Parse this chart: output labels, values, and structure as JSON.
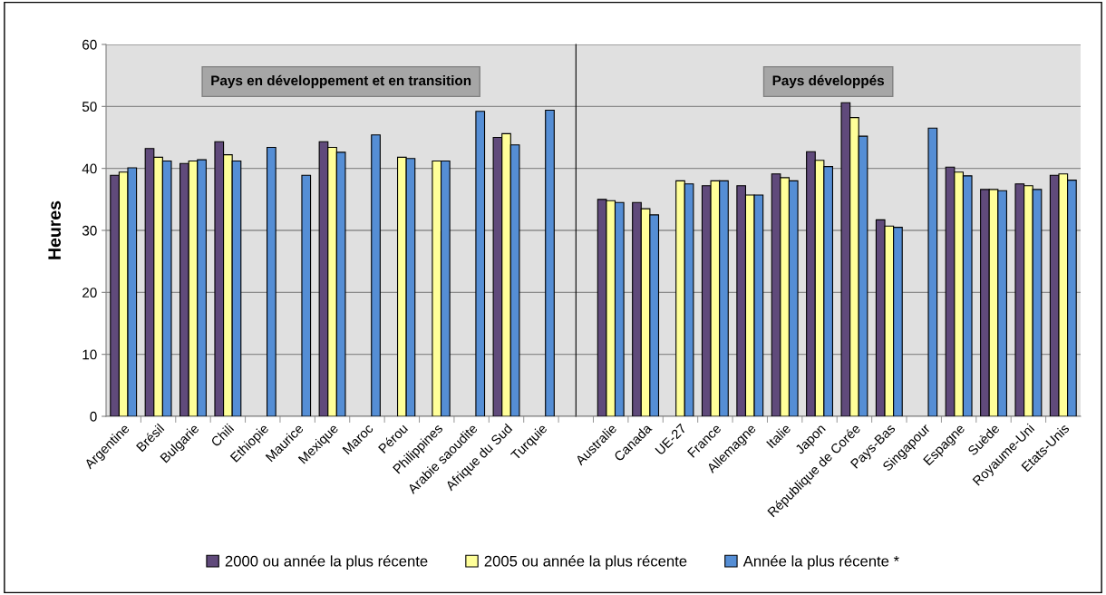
{
  "chart_data": [
    {
      "type": "bar",
      "ylabel": "Heures",
      "annotations": [
        "Pays en développement et en transition"
      ],
      "categories": [
        "Argentine",
        "Brésil",
        "Bulgarie",
        "Chili",
        "Ethiopie",
        "Maurice",
        "Mexique",
        "Maroc",
        "Pérou",
        "Philippines",
        "Arabie saoudite",
        "Afrique du Sud",
        "Turquie"
      ],
      "series": [
        {
          "name": "2000 ou année la plus récente",
          "color": "#604a7b",
          "values": [
            38.9,
            43.2,
            40.8,
            44.3,
            null,
            null,
            44.3,
            null,
            null,
            null,
            null,
            45.0,
            null
          ]
        },
        {
          "name": "2005 ou année la plus récente",
          "color": "#ffff99",
          "values": [
            39.4,
            41.8,
            41.2,
            42.2,
            null,
            null,
            43.4,
            null,
            41.8,
            41.2,
            null,
            45.6,
            null
          ]
        },
        {
          "name": "Année la plus récente *",
          "color": "#558ed5",
          "values": [
            40.1,
            41.2,
            41.4,
            41.2,
            43.4,
            38.9,
            42.6,
            45.4,
            41.6,
            41.2,
            49.2,
            43.8,
            49.4
          ]
        }
      ],
      "ylim": [
        0,
        60
      ],
      "yticks": [
        0,
        10,
        20,
        30,
        40,
        50,
        60
      ],
      "grid": "y",
      "legend": "bottom"
    },
    {
      "type": "bar",
      "annotations": [
        "Pays développés"
      ],
      "categories": [
        "Australie",
        "Canada",
        "UE-27",
        "France",
        "Allemagne",
        "Italie",
        "Japon",
        "République de Corée",
        "Pays-Bas",
        "Singapour",
        "Espagne",
        "Suède",
        "Royaume-Uni",
        "Etats-Unis"
      ],
      "series": [
        {
          "name": "2000 ou année la plus récente",
          "color": "#604a7b",
          "values": [
            35.0,
            34.5,
            null,
            37.2,
            37.2,
            39.1,
            42.7,
            50.6,
            31.7,
            null,
            40.2,
            36.6,
            37.5,
            38.9
          ]
        },
        {
          "name": "2005 ou année la plus récente",
          "color": "#ffff99",
          "values": [
            34.8,
            33.5,
            38.0,
            38.0,
            35.7,
            38.5,
            41.3,
            48.2,
            30.7,
            null,
            39.4,
            36.6,
            37.2,
            39.1
          ]
        },
        {
          "name": "Année la plus récente *",
          "color": "#558ed5",
          "values": [
            34.5,
            32.5,
            37.5,
            38.0,
            35.7,
            38.0,
            40.3,
            45.2,
            30.5,
            46.5,
            38.8,
            36.4,
            36.6,
            38.1
          ]
        }
      ],
      "ylim": [
        0,
        60
      ],
      "yticks": [
        0,
        10,
        20,
        30,
        40,
        50,
        60
      ],
      "grid": "y",
      "tick_labels": "x",
      "legend": "bottom"
    }
  ]
}
